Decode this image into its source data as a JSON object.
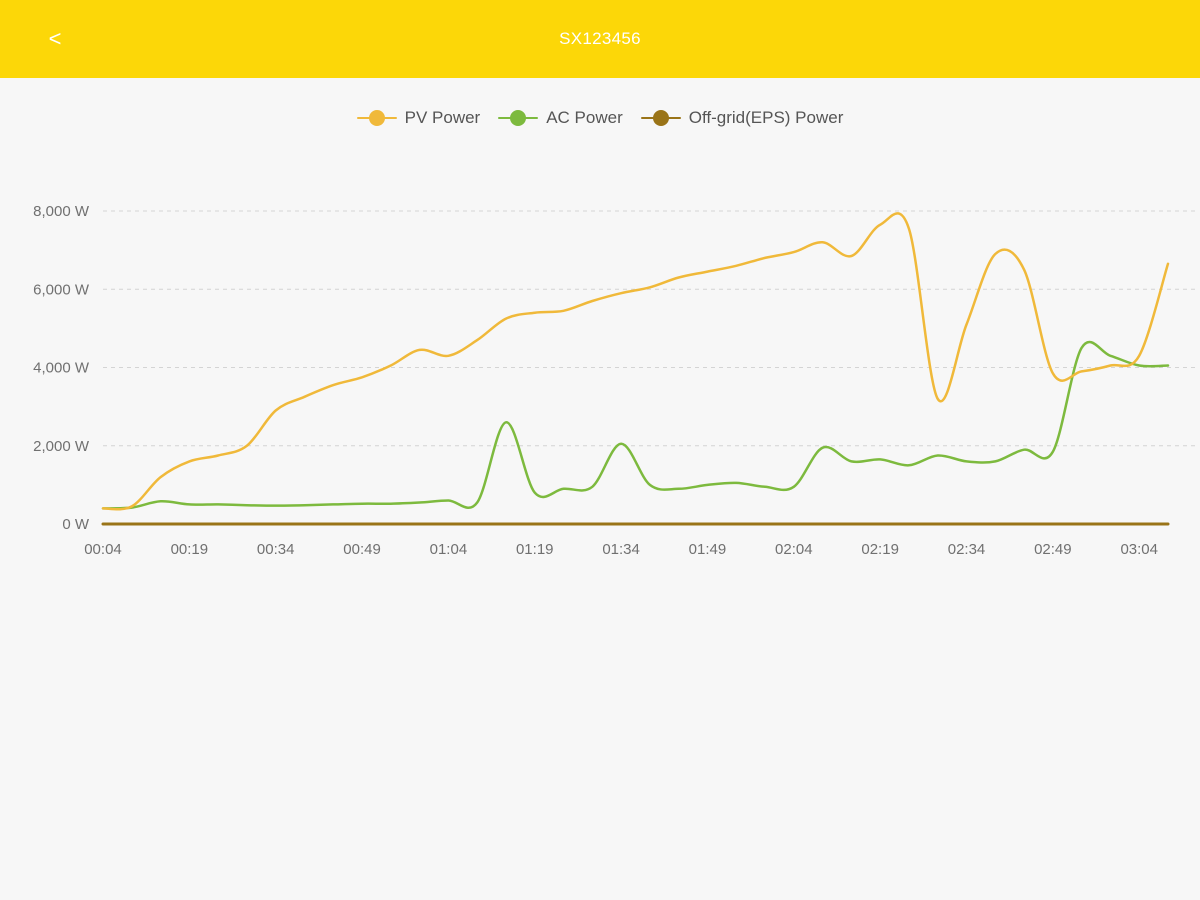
{
  "header": {
    "back_label": "<",
    "title": "SX123456"
  },
  "colors": {
    "header_bg": "#fcd708",
    "pv": "#f0b93a",
    "ac": "#7dba3e",
    "eps": "#9a7418"
  },
  "chart_data": {
    "type": "line",
    "title": "",
    "xlabel": "",
    "ylabel": "",
    "ylim": [
      0,
      8000
    ],
    "y_ticks": [
      "0 W",
      "2,000 W",
      "4,000 W",
      "6,000 W",
      "8,000 W"
    ],
    "y_tick_values": [
      0,
      2000,
      4000,
      6000,
      8000
    ],
    "x_ticks": [
      "00:04",
      "00:19",
      "00:34",
      "00:49",
      "01:04",
      "01:19",
      "01:34",
      "01:49",
      "02:04",
      "02:19",
      "02:34",
      "02:49",
      "03:04"
    ],
    "grid": true,
    "legend": "top-center",
    "x": [
      "00:04",
      "00:09",
      "00:14",
      "00:19",
      "00:24",
      "00:29",
      "00:34",
      "00:39",
      "00:44",
      "00:49",
      "00:54",
      "00:59",
      "01:04",
      "01:09",
      "01:14",
      "01:19",
      "01:24",
      "01:29",
      "01:34",
      "01:39",
      "01:44",
      "01:49",
      "01:54",
      "01:59",
      "02:04",
      "02:09",
      "02:14",
      "02:19",
      "02:24",
      "02:29",
      "02:34",
      "02:39",
      "02:44",
      "02:49",
      "02:54",
      "02:59",
      "03:04",
      "03:09"
    ],
    "series": [
      {
        "name": "PV Power",
        "color": "#f0b93a",
        "values": [
          400,
          450,
          1200,
          1600,
          1750,
          2000,
          2900,
          3250,
          3550,
          3750,
          4050,
          4450,
          4300,
          4700,
          5250,
          5400,
          5450,
          5700,
          5900,
          6050,
          6300,
          6450,
          6600,
          6800,
          6950,
          7200,
          6850,
          7650,
          7550,
          3200,
          5100,
          6900,
          6500,
          3850,
          3900,
          4050,
          4300,
          6650
        ]
      },
      {
        "name": "AC Power",
        "color": "#7dba3e",
        "values": [
          400,
          420,
          580,
          500,
          500,
          480,
          470,
          480,
          500,
          520,
          520,
          550,
          600,
          550,
          2600,
          800,
          900,
          950,
          2050,
          1000,
          900,
          1000,
          1050,
          950,
          950,
          1950,
          1600,
          1650,
          1500,
          1750,
          1600,
          1600,
          1900,
          1850,
          4500,
          4300,
          4050,
          4050
        ]
      },
      {
        "name": "Off-grid(EPS) Power",
        "color": "#9a7418",
        "values": [
          0,
          0,
          0,
          0,
          0,
          0,
          0,
          0,
          0,
          0,
          0,
          0,
          0,
          0,
          0,
          0,
          0,
          0,
          0,
          0,
          0,
          0,
          0,
          0,
          0,
          0,
          0,
          0,
          0,
          0,
          0,
          0,
          0,
          0,
          0,
          0,
          0,
          0
        ]
      }
    ]
  }
}
